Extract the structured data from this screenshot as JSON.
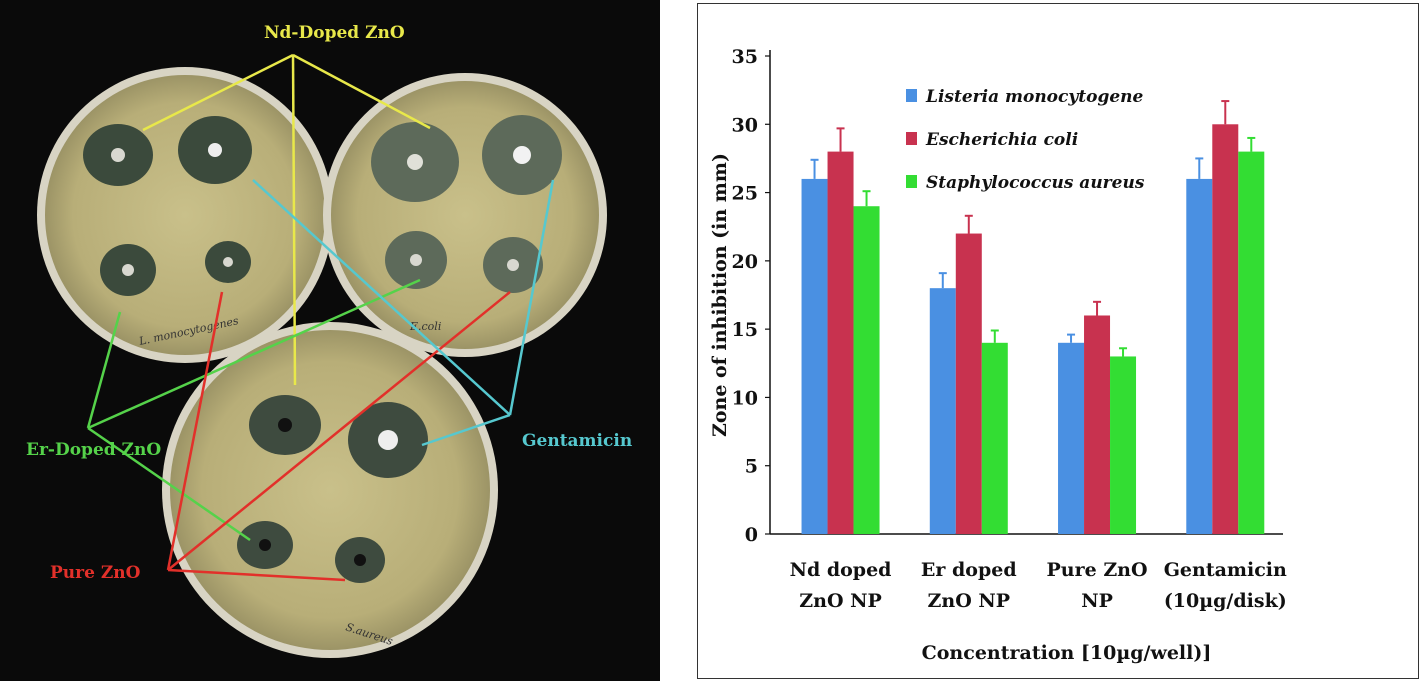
{
  "photo": {
    "labels": {
      "nd_doped": "Nd-Doped ZnO",
      "er_doped": "Er-Doped ZnO",
      "pure": "Pure ZnO",
      "gentamicin": "Gentamicin"
    },
    "plate_labels": {
      "listeria": "L. monocytogenes",
      "ecoli": "E.coli",
      "saureus": "S.aureus"
    },
    "colors": {
      "nd": "#e8e84a",
      "er": "#55d24a",
      "pure": "#e2302a",
      "gentamicin": "#56c8cf",
      "background": "#0a0a0a"
    }
  },
  "chart_data": {
    "type": "bar",
    "categories": [
      "Nd doped ZnO NP",
      "Er doped ZnO NP",
      "Pure ZnO NP",
      "Gentamicin (10µg/disk)"
    ],
    "category_lines": [
      [
        "Nd doped",
        "ZnO NP"
      ],
      [
        "Er doped",
        "ZnO NP"
      ],
      [
        "Pure ZnO",
        "NP"
      ],
      [
        "Gentamicin",
        "(10µg/disk)"
      ]
    ],
    "series": [
      {
        "name": "Listeria monocytogene",
        "values": [
          26,
          18,
          14,
          26
        ],
        "errors": [
          1.4,
          1.1,
          0.6,
          1.5
        ],
        "color": "#4a90e2"
      },
      {
        "name": "Escherichia coli",
        "values": [
          28,
          22,
          16,
          30
        ],
        "errors": [
          1.7,
          1.3,
          1.0,
          1.7
        ],
        "color": "#c8324f"
      },
      {
        "name": "Staphylococcus aureus",
        "values": [
          24,
          14,
          13,
          28
        ],
        "errors": [
          1.1,
          0.9,
          0.6,
          1.0
        ],
        "color": "#33dd33"
      }
    ],
    "xlabel": "Concentration [10µg/well)]",
    "ylabel": "Zone of inhibition (in mm)",
    "ylim": [
      0,
      35
    ],
    "yticks": [
      0,
      5,
      10,
      15,
      20,
      25,
      30,
      35
    ],
    "grid": false,
    "legend": "top-center"
  }
}
